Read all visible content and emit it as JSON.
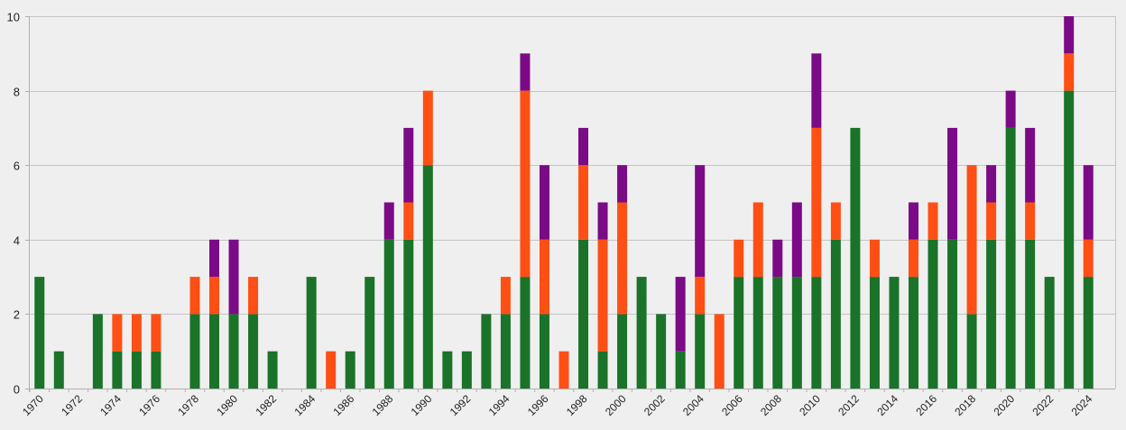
{
  "chart_data": {
    "type": "bar",
    "stacked": true,
    "title": "",
    "xlabel": "",
    "ylabel": "",
    "ylim": [
      0,
      10
    ],
    "yticks": [
      0,
      2,
      4,
      6,
      8,
      10
    ],
    "grid": true,
    "legend": "none",
    "x_tick_labels": [
      "1970",
      "1972",
      "1974",
      "1976",
      "1978",
      "1980",
      "1982",
      "1984",
      "1986",
      "1988",
      "1990",
      "1992",
      "1994",
      "1996",
      "1998",
      "2000",
      "2002",
      "2004",
      "2006",
      "2008",
      "2010",
      "2012",
      "2014",
      "2016",
      "2018",
      "2020",
      "2022",
      "2024"
    ],
    "categories": [
      "1970",
      "1971",
      "1972",
      "1973",
      "1974",
      "1975",
      "1976",
      "1977",
      "1978",
      "1979",
      "1980",
      "1981",
      "1982",
      "1983",
      "1984",
      "1985",
      "1986",
      "1987",
      "1988",
      "1989",
      "1990",
      "1991",
      "1992",
      "1993",
      "1994",
      "1995",
      "1996",
      "1997",
      "1998",
      "1999",
      "2000",
      "2001",
      "2002",
      "2003",
      "2004",
      "2005",
      "2006",
      "2007",
      "2008",
      "2009",
      "2010",
      "2011",
      "2012",
      "2013",
      "2014",
      "2015",
      "2016",
      "2017",
      "2018",
      "2019",
      "2020",
      "2021",
      "2022",
      "2023",
      "2024"
    ],
    "series": [
      {
        "color": "#1a7329",
        "values": [
          3,
          1,
          0,
          2,
          1,
          1,
          1,
          0,
          2,
          2,
          2,
          2,
          1,
          0,
          3,
          0,
          1,
          3,
          4,
          4,
          6,
          1,
          1,
          2,
          2,
          3,
          2,
          0,
          4,
          1,
          2,
          3,
          2,
          1,
          2,
          0,
          3,
          3,
          3,
          3,
          3,
          4,
          7,
          3,
          3,
          3,
          4,
          4,
          2,
          4,
          7,
          4,
          3,
          8,
          3
        ]
      },
      {
        "color": "#ff4f14",
        "values": [
          0,
          0,
          0,
          0,
          1,
          1,
          1,
          0,
          1,
          1,
          0,
          1,
          0,
          0,
          0,
          1,
          0,
          0,
          0,
          1,
          2,
          0,
          0,
          0,
          1,
          5,
          2,
          1,
          2,
          3,
          3,
          0,
          0,
          0,
          1,
          2,
          1,
          2,
          0,
          0,
          4,
          1,
          0,
          1,
          0,
          1,
          1,
          0,
          4,
          1,
          0,
          1,
          0,
          1,
          1
        ]
      },
      {
        "color": "#7b0a86",
        "values": [
          0,
          0,
          0,
          0,
          0,
          0,
          0,
          0,
          0,
          1,
          2,
          0,
          0,
          0,
          0,
          0,
          0,
          0,
          1,
          2,
          0,
          0,
          0,
          0,
          0,
          1,
          2,
          0,
          1,
          1,
          1,
          0,
          0,
          2,
          3,
          0,
          0,
          0,
          1,
          2,
          2,
          0,
          0,
          0,
          0,
          1,
          0,
          3,
          0,
          1,
          1,
          2,
          0,
          1,
          2
        ]
      }
    ]
  }
}
